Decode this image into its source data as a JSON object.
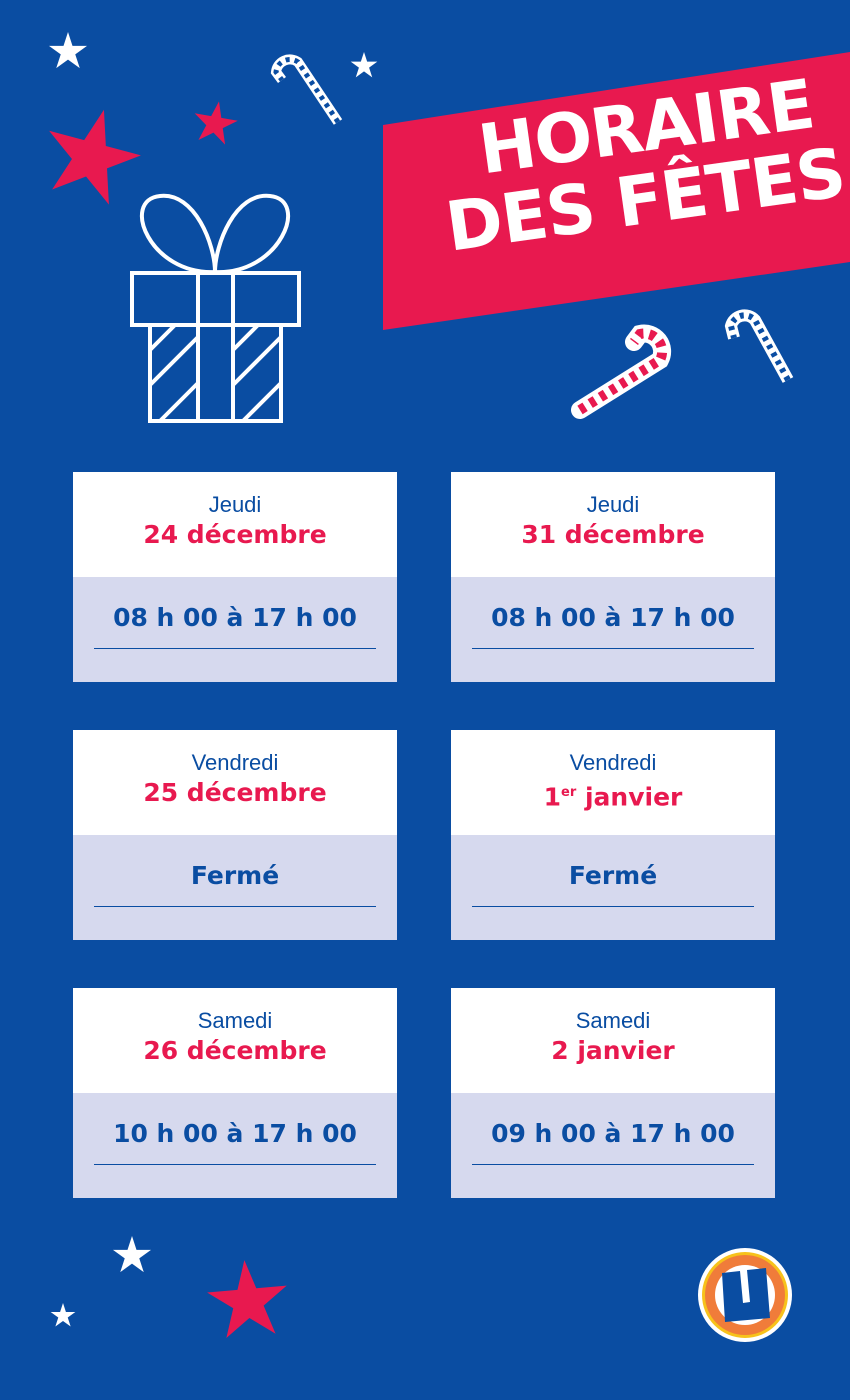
{
  "title": {
    "line1": "HORAIRE",
    "line2": "DES FÊTES"
  },
  "colors": {
    "background": "#0a4da2",
    "accent": "#e8194f",
    "card_bottom": "#d6d9ee",
    "logo_orange": "#f07c3a",
    "logo_yellow": "#f7c21b"
  },
  "schedule": [
    {
      "day": "Jeudi",
      "date": "24 décembre",
      "hours": "08 h 00 à 17 h 00"
    },
    {
      "day": "Jeudi",
      "date": "31 décembre",
      "hours": "08 h 00 à 17 h 00"
    },
    {
      "day": "Vendredi",
      "date": "25 décembre",
      "hours": "Fermé"
    },
    {
      "day": "Vendredi",
      "date_num": "1",
      "date_sup": "er",
      "date_rest": " janvier",
      "hours": "Fermé"
    },
    {
      "day": "Samedi",
      "date": "26 décembre",
      "hours": "10 h 00 à 17 h 00"
    },
    {
      "day": "Samedi",
      "date": "2 janvier",
      "hours": "09 h 00 à 17 h 00"
    }
  ],
  "logo": {
    "letter": "U"
  },
  "icons": [
    "star-icon",
    "candy-cane-icon",
    "gift-icon",
    "logo"
  ]
}
